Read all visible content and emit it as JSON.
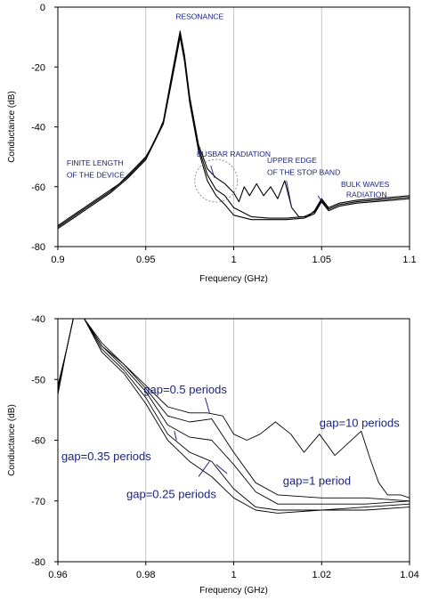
{
  "chart_data": [
    {
      "type": "line",
      "xlabel": "Frequency (GHz)",
      "ylabel": "Conductance (dB)",
      "xlim": [
        0.9,
        1.1
      ],
      "ylim": [
        -80,
        0
      ],
      "xticks": [
        "0.9",
        "0.95",
        "1",
        "1.05",
        "1.1"
      ],
      "yticks": [
        "0",
        "-20",
        "-40",
        "-60",
        "-80"
      ],
      "grid": "vertical",
      "annotations": [
        {
          "text": "RESONANCE",
          "x": 0.967,
          "y": -4
        },
        {
          "text": "FINITE LENGTH",
          "x": 0.905,
          "y": -53
        },
        {
          "text": "OF THE DEVICE",
          "x": 0.905,
          "y": -57
        },
        {
          "text": "BUSBAR RADIATION",
          "x": 0.979,
          "y": -50
        },
        {
          "text": "UPPER EDGE",
          "x": 1.019,
          "y": -52
        },
        {
          "text": "OF THE STOP BAND",
          "x": 1.019,
          "y": -56
        },
        {
          "text": "BULK WAVES",
          "x": 1.061,
          "y": -60
        },
        {
          "text": "RADIATION",
          "x": 1.064,
          "y": -63.5
        }
      ],
      "series": [
        {
          "values": [
            [
              0.9,
              -73
            ],
            [
              0.905,
              -71
            ],
            [
              0.91,
              -69
            ],
            [
              0.915,
              -67
            ],
            [
              0.92,
              -65
            ],
            [
              0.925,
              -63
            ],
            [
              0.93,
              -61
            ],
            [
              0.935,
              -59
            ],
            [
              0.94,
              -56
            ],
            [
              0.945,
              -53
            ],
            [
              0.95,
              -50
            ],
            [
              0.955,
              -45
            ],
            [
              0.96,
              -38
            ],
            [
              0.965,
              -22
            ],
            [
              0.9695,
              -8
            ],
            [
              0.972,
              -16
            ],
            [
              0.975,
              -30
            ],
            [
              0.98,
              -46
            ],
            [
              0.985,
              -54
            ],
            [
              0.99,
              -57
            ],
            [
              0.995,
              -59
            ],
            [
              1.0,
              -62
            ],
            [
              1.003,
              -65
            ],
            [
              1.006,
              -60
            ],
            [
              1.009,
              -63
            ],
            [
              1.013,
              -59
            ],
            [
              1.017,
              -63
            ],
            [
              1.021,
              -60
            ],
            [
              1.025,
              -64
            ],
            [
              1.029,
              -58
            ],
            [
              1.033,
              -67
            ],
            [
              1.037,
              -70
            ],
            [
              1.042,
              -70
            ],
            [
              1.046,
              -68
            ],
            [
              1.05,
              -64
            ],
            [
              1.054,
              -67
            ],
            [
              1.06,
              -65.5
            ],
            [
              1.07,
              -64.5
            ],
            [
              1.08,
              -64
            ],
            [
              1.09,
              -63.5
            ],
            [
              1.1,
              -63
            ]
          ]
        },
        {
          "values": [
            [
              0.9,
              -73.5
            ],
            [
              0.91,
              -69.5
            ],
            [
              0.92,
              -65.5
            ],
            [
              0.93,
              -61.5
            ],
            [
              0.94,
              -56.5
            ],
            [
              0.95,
              -50.5
            ],
            [
              0.96,
              -38.5
            ],
            [
              0.965,
              -23
            ],
            [
              0.9695,
              -9
            ],
            [
              0.972,
              -17
            ],
            [
              0.975,
              -31
            ],
            [
              0.98,
              -47
            ],
            [
              0.985,
              -56
            ],
            [
              0.99,
              -61
            ],
            [
              0.995,
              -63
            ],
            [
              1.0,
              -67
            ],
            [
              1.01,
              -70
            ],
            [
              1.02,
              -70.5
            ],
            [
              1.03,
              -70.5
            ],
            [
              1.04,
              -70
            ],
            [
              1.046,
              -68.5
            ],
            [
              1.05,
              -64.5
            ],
            [
              1.054,
              -67.5
            ],
            [
              1.06,
              -66
            ],
            [
              1.07,
              -65
            ],
            [
              1.08,
              -64.5
            ],
            [
              1.09,
              -64
            ],
            [
              1.1,
              -63.5
            ]
          ]
        },
        {
          "values": [
            [
              0.9,
              -74
            ],
            [
              0.91,
              -70
            ],
            [
              0.92,
              -66
            ],
            [
              0.93,
              -62
            ],
            [
              0.94,
              -57
            ],
            [
              0.95,
              -51
            ],
            [
              0.96,
              -39
            ],
            [
              0.965,
              -24
            ],
            [
              0.9695,
              -10
            ],
            [
              0.972,
              -18
            ],
            [
              0.975,
              -32
            ],
            [
              0.98,
              -48
            ],
            [
              0.985,
              -58
            ],
            [
              0.99,
              -63
            ],
            [
              0.995,
              -66
            ],
            [
              1.0,
              -69.5
            ],
            [
              1.01,
              -71
            ],
            [
              1.02,
              -71
            ],
            [
              1.03,
              -71
            ],
            [
              1.04,
              -70.5
            ],
            [
              1.046,
              -69
            ],
            [
              1.05,
              -65
            ],
            [
              1.054,
              -68
            ],
            [
              1.06,
              -66.5
            ],
            [
              1.07,
              -65.5
            ],
            [
              1.08,
              -65
            ],
            [
              1.09,
              -64.5
            ],
            [
              1.1,
              -64
            ]
          ]
        }
      ]
    },
    {
      "type": "line",
      "xlabel": "Frequency (GHz)",
      "ylabel": "Conductance (dB)",
      "xlim": [
        0.96,
        1.04
      ],
      "ylim": [
        -80,
        -40
      ],
      "xticks": [
        "0.96",
        "0.98",
        "1",
        "1.02",
        "1.04"
      ],
      "yticks": [
        "-40",
        "-50",
        "-60",
        "-70",
        "-80"
      ],
      "grid": "vertical",
      "annotations": [
        {
          "text": "gap=0.5 periods",
          "x": 0.9795,
          "y": -52.3
        },
        {
          "text": "gap=10 periods",
          "x": 1.0195,
          "y": -57.8
        },
        {
          "text": "gap=0.35 periods",
          "x": 0.9608,
          "y": -63.3
        },
        {
          "text": "gap=1 period",
          "x": 1.0112,
          "y": -67.3
        },
        {
          "text": "gap=0.25 periods",
          "x": 0.9756,
          "y": -69.5
        }
      ],
      "series": [
        {
          "name": "gap=10 periods",
          "values": [
            [
              0.9635,
              -40
            ],
            [
              0.966,
              -40
            ],
            [
              0.97,
              -44.5
            ],
            [
              0.975,
              -47.5
            ],
            [
              0.98,
              -51
            ],
            [
              0.985,
              -54.5
            ],
            [
              0.99,
              -55.5
            ],
            [
              0.994,
              -55.5
            ],
            [
              0.9975,
              -56
            ],
            [
              1.0,
              -59
            ],
            [
              1.003,
              -60
            ],
            [
              1.006,
              -59
            ],
            [
              1.0095,
              -57
            ],
            [
              1.013,
              -59
            ],
            [
              1.016,
              -62
            ],
            [
              1.0195,
              -59
            ],
            [
              1.023,
              -62.5
            ],
            [
              1.026,
              -60.5
            ],
            [
              1.029,
              -58.5
            ],
            [
              1.031,
              -63
            ],
            [
              1.033,
              -67
            ],
            [
              1.035,
              -69
            ],
            [
              1.038,
              -69
            ],
            [
              1.04,
              -69.5
            ]
          ]
        },
        {
          "name": "gap=0.5 periods",
          "values": [
            [
              0.96,
              -52.5
            ],
            [
              0.962,
              -45
            ],
            [
              0.9635,
              -40
            ],
            [
              0.966,
              -40
            ],
            [
              0.97,
              -44
            ],
            [
              0.975,
              -47.5
            ],
            [
              0.98,
              -51.5
            ],
            [
              0.985,
              -56
            ],
            [
              0.99,
              -57
            ],
            [
              0.995,
              -56.5
            ],
            [
              1.0,
              -62
            ],
            [
              1.005,
              -67
            ],
            [
              1.01,
              -69
            ],
            [
              1.02,
              -69.5
            ],
            [
              1.03,
              -69.5
            ],
            [
              1.04,
              -70
            ]
          ]
        },
        {
          "name": "gap=1 period",
          "values": [
            [
              0.96,
              -52
            ],
            [
              0.962,
              -45
            ],
            [
              0.9635,
              -40
            ],
            [
              0.966,
              -40
            ],
            [
              0.97,
              -44.5
            ],
            [
              0.975,
              -48
            ],
            [
              0.98,
              -52
            ],
            [
              0.985,
              -57.5
            ],
            [
              0.99,
              -59.5
            ],
            [
              0.995,
              -60
            ],
            [
              1.0,
              -64
            ],
            [
              1.005,
              -68.5
            ],
            [
              1.01,
              -70.5
            ],
            [
              1.02,
              -70.5
            ],
            [
              1.03,
              -70.5
            ],
            [
              1.04,
              -70
            ]
          ]
        },
        {
          "name": "gap=0.35 periods",
          "values": [
            [
              0.96,
              -51.5
            ],
            [
              0.962,
              -45
            ],
            [
              0.9635,
              -40
            ],
            [
              0.966,
              -40
            ],
            [
              0.97,
              -45
            ],
            [
              0.975,
              -48.5
            ],
            [
              0.98,
              -53
            ],
            [
              0.985,
              -59
            ],
            [
              0.99,
              -62
            ],
            [
              0.995,
              -63.5
            ],
            [
              1.0,
              -68
            ],
            [
              1.005,
              -71
            ],
            [
              1.01,
              -71.5
            ],
            [
              1.02,
              -71.5
            ],
            [
              1.03,
              -71
            ],
            [
              1.04,
              -70.5
            ]
          ]
        },
        {
          "name": "gap=0.25 periods",
          "values": [
            [
              0.96,
              -51
            ],
            [
              0.962,
              -45
            ],
            [
              0.9635,
              -40
            ],
            [
              0.966,
              -40
            ],
            [
              0.97,
              -45.5
            ],
            [
              0.975,
              -49
            ],
            [
              0.98,
              -54
            ],
            [
              0.985,
              -60
            ],
            [
              0.99,
              -63.5
            ],
            [
              0.995,
              -66
            ],
            [
              1.0,
              -69.5
            ],
            [
              1.005,
              -71.5
            ],
            [
              1.01,
              -72
            ],
            [
              1.02,
              -71.5
            ],
            [
              1.03,
              -71.5
            ],
            [
              1.04,
              -71
            ]
          ]
        }
      ]
    }
  ]
}
